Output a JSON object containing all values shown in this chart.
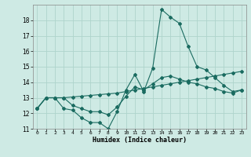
{
  "xlabel": "Humidex (Indice chaleur)",
  "ylabel": "",
  "background_color": "#ceeae4",
  "grid_color": "#aed4cc",
  "line_color": "#1a6b60",
  "xlim": [
    -0.5,
    23.5
  ],
  "ylim": [
    11,
    19
  ],
  "yticks": [
    11,
    12,
    13,
    14,
    15,
    16,
    17,
    18
  ],
  "xticks": [
    0,
    1,
    2,
    3,
    4,
    5,
    6,
    7,
    8,
    9,
    10,
    11,
    12,
    13,
    14,
    15,
    16,
    17,
    18,
    19,
    20,
    21,
    22,
    23
  ],
  "series": [
    {
      "x": [
        0,
        1,
        2,
        3,
        4,
        5,
        6,
        7,
        8,
        9,
        10,
        11,
        12,
        13,
        14,
        15,
        16,
        17,
        18,
        19,
        20,
        21,
        22,
        23
      ],
      "y": [
        12.3,
        13.0,
        13.0,
        12.3,
        12.2,
        11.7,
        11.4,
        11.4,
        11.0,
        12.1,
        13.5,
        14.5,
        13.4,
        14.9,
        18.7,
        18.2,
        17.8,
        16.3,
        15.0,
        14.8,
        14.3,
        13.8,
        13.4,
        13.5
      ]
    },
    {
      "x": [
        0,
        1,
        2,
        3,
        4,
        5,
        6,
        7,
        8,
        9,
        10,
        11,
        12,
        13,
        14,
        15,
        16,
        17,
        18,
        19,
        20,
        21,
        22,
        23
      ],
      "y": [
        12.3,
        13.0,
        13.0,
        13.0,
        13.05,
        13.1,
        13.15,
        13.2,
        13.25,
        13.3,
        13.4,
        13.5,
        13.6,
        13.7,
        13.8,
        13.9,
        14.0,
        14.1,
        14.2,
        14.3,
        14.4,
        14.5,
        14.6,
        14.7
      ]
    },
    {
      "x": [
        0,
        1,
        2,
        3,
        4,
        5,
        6,
        7,
        8,
        9,
        10,
        11,
        12,
        13,
        14,
        15,
        16,
        17,
        18,
        19,
        20,
        21,
        22,
        23
      ],
      "y": [
        12.3,
        13.0,
        13.0,
        13.0,
        12.5,
        12.3,
        12.1,
        12.1,
        11.9,
        12.4,
        13.1,
        13.7,
        13.5,
        13.9,
        14.3,
        14.4,
        14.2,
        14.0,
        13.9,
        13.7,
        13.6,
        13.4,
        13.3,
        13.5
      ]
    }
  ]
}
